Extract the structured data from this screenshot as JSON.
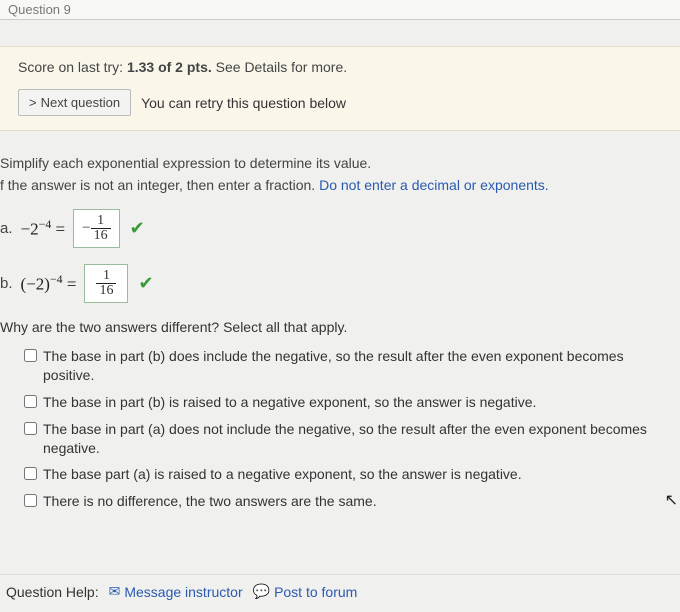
{
  "topbar": {
    "label": "Question 9"
  },
  "score": {
    "prefix": "Score on last try: ",
    "value": "1.33 of 2 pts.",
    "suffix": " See Details for more."
  },
  "nextbtn": {
    "chevron": ">",
    "label": "Next question"
  },
  "retry_text": "You can retry this question below",
  "instr1": "Simplify each exponential expression to determine its value.",
  "instr2a": "f the answer is not an integer, then enter a fraction. ",
  "instr2b": "Do not enter a decimal or exponents.",
  "partA": {
    "label": "a.",
    "base": "−2",
    "exp": "−4",
    "eq": " = ",
    "ans_sign": "−",
    "ans_num": "1",
    "ans_den": "16"
  },
  "partB": {
    "label": "b.",
    "lp": "(",
    "base": "−2",
    "rp": ")",
    "exp": "−4",
    "eq": " = ",
    "ans_num": "1",
    "ans_den": "16"
  },
  "why": "Why are the two answers different? Select all that apply.",
  "options": [
    "The base in part (b) does include the negative, so the result after the even exponent becomes positive.",
    "The base in part (b) is raised to a negative exponent, so the answer is negative.",
    "The base in part (a) does not include the negative, so the result after the even exponent becomes negative.",
    "The base part (a) is raised to a negative exponent, so the answer is negative.",
    "There is no difference, the two answers are the same."
  ],
  "help": {
    "label": "Question Help:",
    "msg": "Message instructor",
    "post": "Post to forum"
  },
  "colors": {
    "link": "#2a5ab0",
    "correct": "#3a9a3a",
    "band_bg": "#faf7ea"
  }
}
